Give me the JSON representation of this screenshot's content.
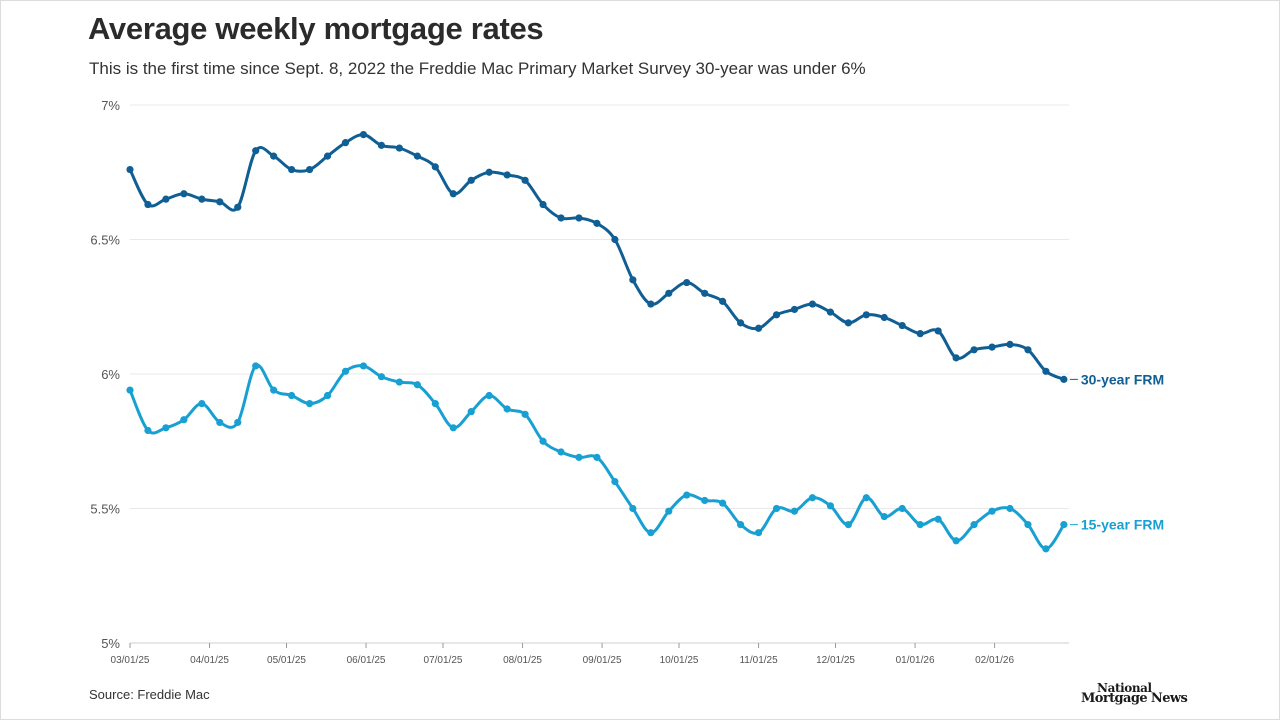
{
  "header": {
    "title": "Average weekly mortgage rates",
    "subtitle": "This is the first time since Sept. 8, 2022 the Freddie Mac Primary Market Survey 30-year was under 6%"
  },
  "footer": {
    "source": "Source: Freddie Mac",
    "logo_line1": "National",
    "logo_line2": "Mortgage News"
  },
  "colors": {
    "series_30": "#0f5e94",
    "series_15": "#18a0d2",
    "grid": "#e8e8e8",
    "axis_text": "#555555"
  },
  "chart_data": {
    "type": "line",
    "title": "Average weekly mortgage rates",
    "subtitle": "This is the first time since Sept. 8, 2022 the Freddie Mac Primary Market Survey 30-year was under 6%",
    "xlabel": "",
    "ylabel": "",
    "ylim": [
      5,
      7
    ],
    "y_ticks": [
      5,
      5.5,
      6,
      6.5,
      7
    ],
    "y_tick_labels": [
      "5%",
      "5.5%",
      "6%",
      "6.5%",
      "7%"
    ],
    "x_tick_labels": [
      "03/01/25",
      "04/01/25",
      "05/01/25",
      "06/01/25",
      "07/01/25",
      "08/01/25",
      "09/01/25",
      "10/01/25",
      "11/01/25",
      "12/01/25",
      "01/01/26",
      "02/01/26"
    ],
    "x_tick_dates": [
      "2025-03-01",
      "2025-04-01",
      "2025-05-01",
      "2025-06-01",
      "2025-07-01",
      "2025-08-01",
      "2025-09-01",
      "2025-10-01",
      "2025-11-01",
      "2025-12-01",
      "2026-01-01",
      "2026-02-01"
    ],
    "x_range": [
      "2025-03-01",
      "2026-03-02"
    ],
    "grid": true,
    "x": [
      "2025-03-01",
      "2025-03-08",
      "2025-03-15",
      "2025-03-22",
      "2025-03-29",
      "2025-04-05",
      "2025-04-12",
      "2025-04-19",
      "2025-04-26",
      "2025-05-03",
      "2025-05-10",
      "2025-05-17",
      "2025-05-24",
      "2025-05-31",
      "2025-06-07",
      "2025-06-14",
      "2025-06-21",
      "2025-06-28",
      "2025-07-05",
      "2025-07-12",
      "2025-07-19",
      "2025-07-26",
      "2025-08-02",
      "2025-08-09",
      "2025-08-16",
      "2025-08-23",
      "2025-08-30",
      "2025-09-06",
      "2025-09-13",
      "2025-09-20",
      "2025-09-27",
      "2025-10-04",
      "2025-10-11",
      "2025-10-18",
      "2025-10-25",
      "2025-11-01",
      "2025-11-08",
      "2025-11-15",
      "2025-11-22",
      "2025-11-29",
      "2025-12-06",
      "2025-12-13",
      "2025-12-20",
      "2025-12-27",
      "2026-01-03",
      "2026-01-10",
      "2026-01-17",
      "2026-01-24",
      "2026-01-31",
      "2026-02-07",
      "2026-02-14",
      "2026-02-21",
      "2026-02-28"
    ],
    "series": [
      {
        "name": "30-year FRM",
        "values": [
          6.76,
          6.63,
          6.65,
          6.67,
          6.65,
          6.64,
          6.62,
          6.83,
          6.81,
          6.76,
          6.76,
          6.81,
          6.86,
          6.89,
          6.85,
          6.84,
          6.81,
          6.77,
          6.67,
          6.72,
          6.75,
          6.74,
          6.72,
          6.63,
          6.58,
          6.58,
          6.56,
          6.5,
          6.35,
          6.26,
          6.3,
          6.34,
          6.3,
          6.27,
          6.19,
          6.17,
          6.22,
          6.24,
          6.26,
          6.23,
          6.19,
          6.22,
          6.21,
          6.18,
          6.15,
          6.16,
          6.06,
          6.09,
          6.1,
          6.11,
          6.09,
          6.01,
          5.98
        ]
      },
      {
        "name": "15-year FRM",
        "values": [
          5.94,
          5.79,
          5.8,
          5.83,
          5.89,
          5.82,
          5.82,
          6.03,
          5.94,
          5.92,
          5.89,
          5.92,
          6.01,
          6.03,
          5.99,
          5.97,
          5.96,
          5.89,
          5.8,
          5.86,
          5.92,
          5.87,
          5.85,
          5.75,
          5.71,
          5.69,
          5.69,
          5.6,
          5.5,
          5.41,
          5.49,
          5.55,
          5.53,
          5.52,
          5.44,
          5.41,
          5.5,
          5.49,
          5.54,
          5.51,
          5.44,
          5.54,
          5.47,
          5.5,
          5.44,
          5.46,
          5.38,
          5.44,
          5.49,
          5.5,
          5.44,
          5.35,
          5.44
        ]
      }
    ]
  }
}
